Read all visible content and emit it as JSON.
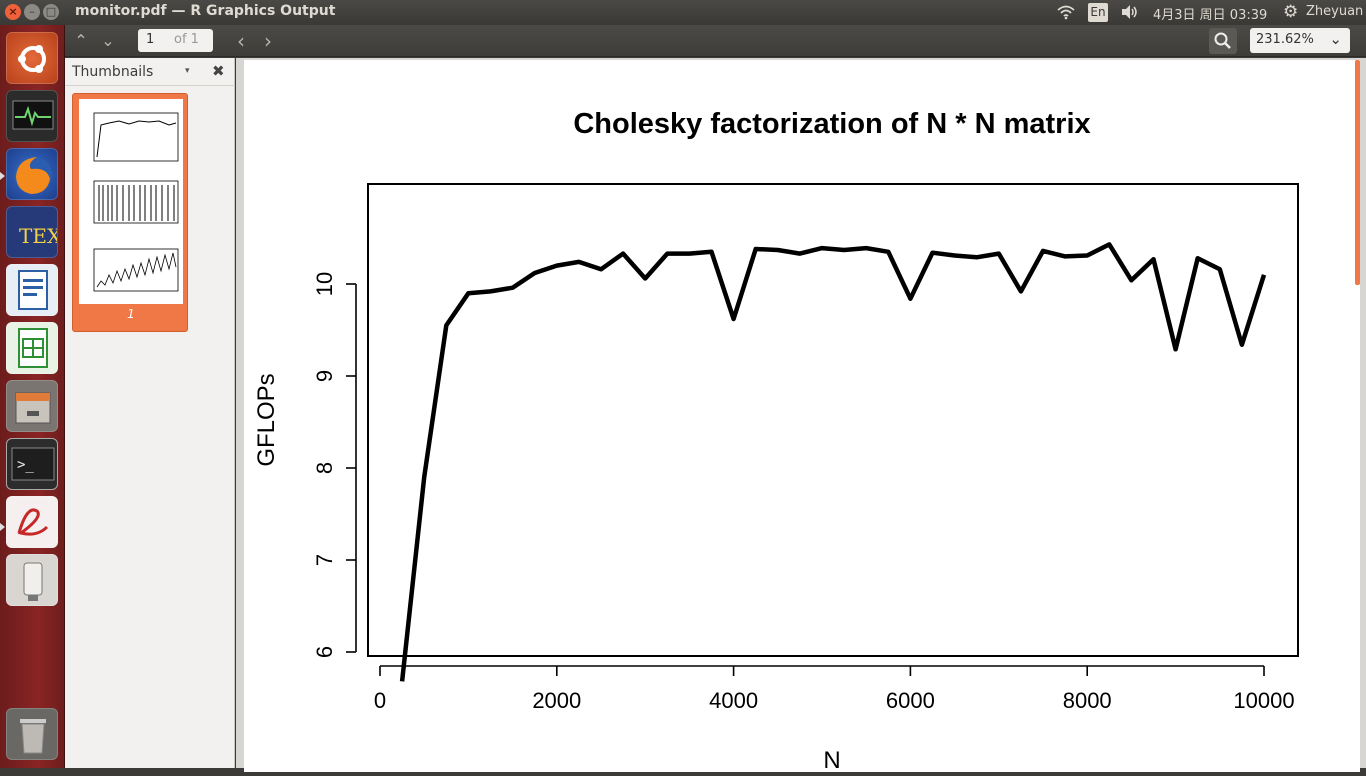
{
  "window": {
    "title": "monitor.pdf — R Graphics Output",
    "close_glyph": "×",
    "min_glyph": "–",
    "max_glyph": "□"
  },
  "panel": {
    "lang": "En",
    "clock": "4月3日 周日 03:39",
    "user": "Zheyuan",
    "icons": [
      "wifi-icon",
      "volume-icon",
      "gear-icon"
    ]
  },
  "launcher": {
    "items": [
      "ubuntu-dash",
      "system-monitor",
      "firefox",
      "texmaker",
      "libreoffice-writer",
      "libreoffice-calc",
      "files",
      "terminal",
      "pdf-reader",
      "usb-drive",
      "trash"
    ]
  },
  "toolbar": {
    "page_current": "1",
    "page_total": "of 1",
    "zoom": "231.62%",
    "up_glyph": "⌃",
    "down_glyph": "⌄",
    "prev_glyph": "‹",
    "next_glyph": "›",
    "chevron_glyph": "⌄"
  },
  "sidebar": {
    "title": "Thumbnails",
    "dropdown_glyph": "▾",
    "close_glyph": "✖",
    "thumbnails": [
      {
        "label": "1"
      }
    ]
  },
  "colors": {
    "accent": "#f07746",
    "launcher": "#7a2020",
    "panel": "#3c3b37"
  },
  "chart_data": {
    "type": "line",
    "title": "Cholesky factorization of N * N matrix",
    "xlabel": "N",
    "ylabel": "GFLOPs",
    "xlim": [
      0,
      10000
    ],
    "ylim": [
      5.5,
      10.6
    ],
    "xticks": [
      "0",
      "2000",
      "4000",
      "6000",
      "8000",
      "10000"
    ],
    "yticks": [
      "6",
      "7",
      "8",
      "9",
      "10"
    ],
    "series": [
      {
        "x": [
          250,
          500,
          750,
          1000,
          1250,
          1500,
          1750,
          2000,
          2250,
          2500,
          2750,
          3000,
          3250,
          3500,
          3750,
          4000,
          4250,
          4500,
          4750,
          5000,
          5250,
          5500,
          5750,
          6000,
          6250,
          6500,
          6750,
          7000,
          7250,
          7500,
          7750,
          8000,
          8250,
          8500,
          8750,
          9000,
          9250,
          9500,
          9750,
          10000
        ],
        "values": [
          5.68,
          7.9,
          9.55,
          9.9,
          9.92,
          9.96,
          10.12,
          10.2,
          10.24,
          10.16,
          10.33,
          10.06,
          10.33,
          10.33,
          10.35,
          9.62,
          10.38,
          10.37,
          10.33,
          10.39,
          10.37,
          10.39,
          10.35,
          9.84,
          10.34,
          10.31,
          10.29,
          10.33,
          9.92,
          10.36,
          10.3,
          10.31,
          10.43,
          10.04,
          10.27,
          9.29,
          10.28,
          10.16,
          9.34,
          10.1
        ]
      }
    ]
  }
}
